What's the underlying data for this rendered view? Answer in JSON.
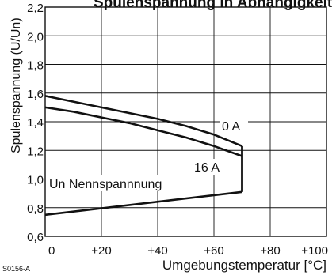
{
  "chart_data": {
    "type": "line",
    "title": "Spulenspannung in Abhängigkeit",
    "xlabel": "Umgebungstemperatur [°C]",
    "ylabel": "Spulenspannung (U/Un)",
    "code": "S0156-A",
    "xlim": [
      0,
      100
    ],
    "ylim": [
      0.6,
      2.2
    ],
    "grid": true,
    "x_ticks": [
      "0",
      "+20",
      "+40",
      "+60",
      "+80",
      "+100"
    ],
    "y_ticks": [
      "0,6",
      "0,8",
      "1,0",
      "1,2",
      "1,4",
      "1,6",
      "1,8",
      "2,0",
      "2,2"
    ],
    "series": [
      {
        "name": "0 A",
        "x": [
          0,
          10,
          20,
          30,
          40,
          50,
          60,
          70
        ],
        "y": [
          1.58,
          1.54,
          1.5,
          1.46,
          1.42,
          1.37,
          1.31,
          1.23
        ]
      },
      {
        "name": "16 A",
        "x": [
          0,
          10,
          20,
          30,
          40,
          50,
          60,
          70
        ],
        "y": [
          1.5,
          1.47,
          1.43,
          1.39,
          1.34,
          1.29,
          1.23,
          1.16
        ]
      },
      {
        "name": "Un Nennspannnung",
        "x": [
          0,
          70
        ],
        "y": [
          0.75,
          0.91
        ]
      }
    ],
    "boundary": {
      "x": [
        70,
        70
      ],
      "y": [
        0.91,
        1.23
      ]
    }
  }
}
